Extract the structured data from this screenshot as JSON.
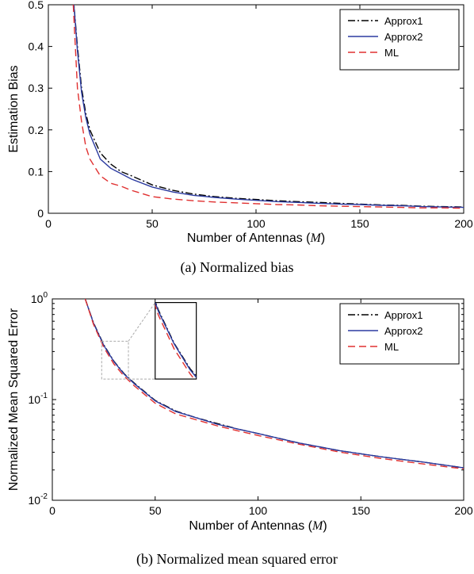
{
  "chart_data": [
    {
      "type": "line",
      "caption": "(a) Normalized bias",
      "xlabel": "Number of Antennas (",
      "xlabel_var": "M",
      "xlabel_close": ")",
      "ylabel": "Estimation Bias",
      "xlim": [
        0,
        200
      ],
      "ylim": [
        0,
        0.5
      ],
      "yscale": "linear",
      "xticks": [
        0,
        50,
        100,
        150,
        200
      ],
      "xtick_labels": [
        "0",
        "50",
        "100",
        "150",
        "200"
      ],
      "yticks": [
        0,
        0.1,
        0.2,
        0.3,
        0.4,
        0.5
      ],
      "ytick_labels": [
        "0",
        "0.1",
        "0.2",
        "0.3",
        "0.4",
        "0.5"
      ],
      "legend_position": "top-right",
      "series": [
        {
          "name": "Approx1",
          "color": "#000000",
          "dash": "dashdot",
          "x": [
            12,
            14,
            16,
            18,
            20,
            25,
            30,
            35,
            40,
            50,
            60,
            70,
            80,
            90,
            100,
            110,
            120,
            130,
            140,
            150,
            160,
            170,
            180,
            190,
            200
          ],
          "y": [
            0.52,
            0.4,
            0.3,
            0.24,
            0.2,
            0.145,
            0.118,
            0.1,
            0.09,
            0.068,
            0.055,
            0.046,
            0.04,
            0.036,
            0.033,
            0.03,
            0.028,
            0.026,
            0.024,
            0.022,
            0.02,
            0.019,
            0.017,
            0.016,
            0.015
          ]
        },
        {
          "name": "Approx2",
          "color": "#2b3aa0",
          "dash": "solid",
          "x": [
            12,
            14,
            16,
            18,
            20,
            25,
            30,
            35,
            40,
            50,
            60,
            70,
            80,
            90,
            100,
            110,
            120,
            130,
            140,
            150,
            160,
            170,
            180,
            190,
            200
          ],
          "y": [
            0.52,
            0.39,
            0.29,
            0.23,
            0.19,
            0.13,
            0.108,
            0.095,
            0.082,
            0.063,
            0.051,
            0.043,
            0.038,
            0.034,
            0.031,
            0.028,
            0.026,
            0.024,
            0.022,
            0.021,
            0.019,
            0.018,
            0.016,
            0.015,
            0.014
          ]
        },
        {
          "name": "ML",
          "color": "#e03030",
          "dash": "dashed",
          "x": [
            12,
            14,
            16,
            18,
            20,
            25,
            30,
            35,
            40,
            50,
            60,
            70,
            80,
            90,
            100,
            110,
            120,
            130,
            140,
            150,
            160,
            170,
            180,
            190,
            200
          ],
          "y": [
            0.5,
            0.3,
            0.22,
            0.16,
            0.13,
            0.09,
            0.072,
            0.065,
            0.055,
            0.04,
            0.034,
            0.03,
            0.027,
            0.025,
            0.023,
            0.021,
            0.02,
            0.018,
            0.017,
            0.016,
            0.015,
            0.014,
            0.013,
            0.013,
            0.012
          ]
        }
      ]
    },
    {
      "type": "line",
      "caption": "(b) Normalized mean squared error",
      "xlabel": "Number of Antennas (",
      "xlabel_var": "M",
      "xlabel_close": ")",
      "ylabel": "Normalized Mean Squared Error",
      "xlim": [
        0,
        200
      ],
      "ylim": [
        0.01,
        1
      ],
      "yscale": "log",
      "xticks": [
        0,
        50,
        100,
        150,
        200
      ],
      "xtick_labels": [
        "0",
        "50",
        "100",
        "150",
        "200"
      ],
      "yticks": [
        0.01,
        0.1,
        1
      ],
      "ytick_base": "10",
      "ytick_exponents": [
        "-2",
        "-1",
        "0"
      ],
      "legend_position": "top-right",
      "inset_zoom": true,
      "series": [
        {
          "name": "Approx1",
          "color": "#000000",
          "dash": "dashdot",
          "x": [
            16,
            20,
            25,
            30,
            35,
            40,
            50,
            60,
            70,
            80,
            90,
            100,
            120,
            140,
            160,
            180,
            200
          ],
          "y": [
            1.0,
            0.58,
            0.35,
            0.24,
            0.18,
            0.145,
            0.098,
            0.077,
            0.066,
            0.058,
            0.051,
            0.046,
            0.037,
            0.031,
            0.027,
            0.024,
            0.021
          ]
        },
        {
          "name": "Approx2",
          "color": "#2b3aa0",
          "dash": "solid",
          "x": [
            16,
            20,
            25,
            30,
            35,
            40,
            50,
            60,
            70,
            80,
            90,
            100,
            120,
            140,
            160,
            180,
            200
          ],
          "y": [
            1.0,
            0.575,
            0.345,
            0.238,
            0.178,
            0.143,
            0.097,
            0.076,
            0.066,
            0.057,
            0.051,
            0.046,
            0.037,
            0.031,
            0.027,
            0.024,
            0.021
          ]
        },
        {
          "name": "ML",
          "color": "#e03030",
          "dash": "dashed",
          "x": [
            16,
            20,
            25,
            30,
            35,
            40,
            50,
            60,
            70,
            80,
            90,
            100,
            120,
            140,
            160,
            180,
            200
          ],
          "y": [
            1.0,
            0.56,
            0.33,
            0.225,
            0.17,
            0.136,
            0.092,
            0.072,
            0.063,
            0.055,
            0.049,
            0.044,
            0.036,
            0.03,
            0.026,
            0.023,
            0.0205
          ]
        }
      ]
    }
  ]
}
